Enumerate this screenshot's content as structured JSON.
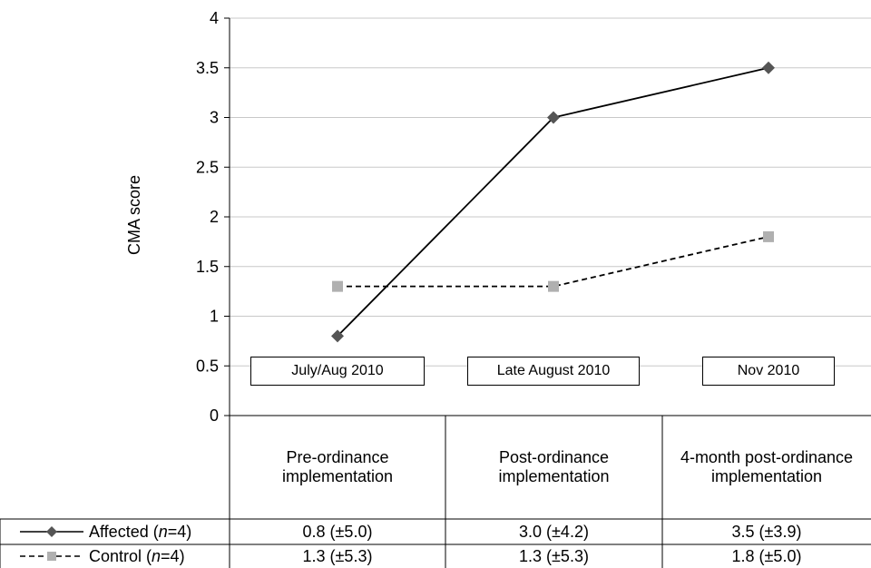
{
  "chart_data": {
    "type": "line",
    "ylabel": "CMA score",
    "ylim": [
      0,
      4
    ],
    "ytick_step": 0.5,
    "ytick_labels": [
      "0",
      "0.5",
      "1",
      "1.5",
      "2",
      "2.5",
      "3",
      "3.5",
      "4"
    ],
    "grid": true,
    "dates": [
      "July/Aug 2010",
      "Late August 2010",
      "Nov 2010"
    ],
    "categories": [
      "Pre-ordinance implementation",
      "Post-ordinance implementation",
      "4-month post-ordinance implementation"
    ],
    "series": [
      {
        "name": "Affected",
        "n_label": "n",
        "n_value": "=4",
        "values": [
          0.8,
          3.0,
          3.5
        ],
        "value_labels": [
          "0.8 (±5.0)",
          "3.0 (±4.2)",
          "3.5 (±3.9)"
        ],
        "color": "#000000",
        "marker_color": "#555555",
        "marker": "diamond",
        "dashed": false
      },
      {
        "name": "Control",
        "n_label": "n",
        "n_value": "=4",
        "values": [
          1.3,
          1.3,
          1.8
        ],
        "value_labels": [
          "1.3 (±5.3)",
          "1.3 (±5.3)",
          "1.8 (±5.0)"
        ],
        "color": "#000000",
        "marker_color": "#b0b0b0",
        "marker": "square",
        "dashed": true
      }
    ]
  }
}
